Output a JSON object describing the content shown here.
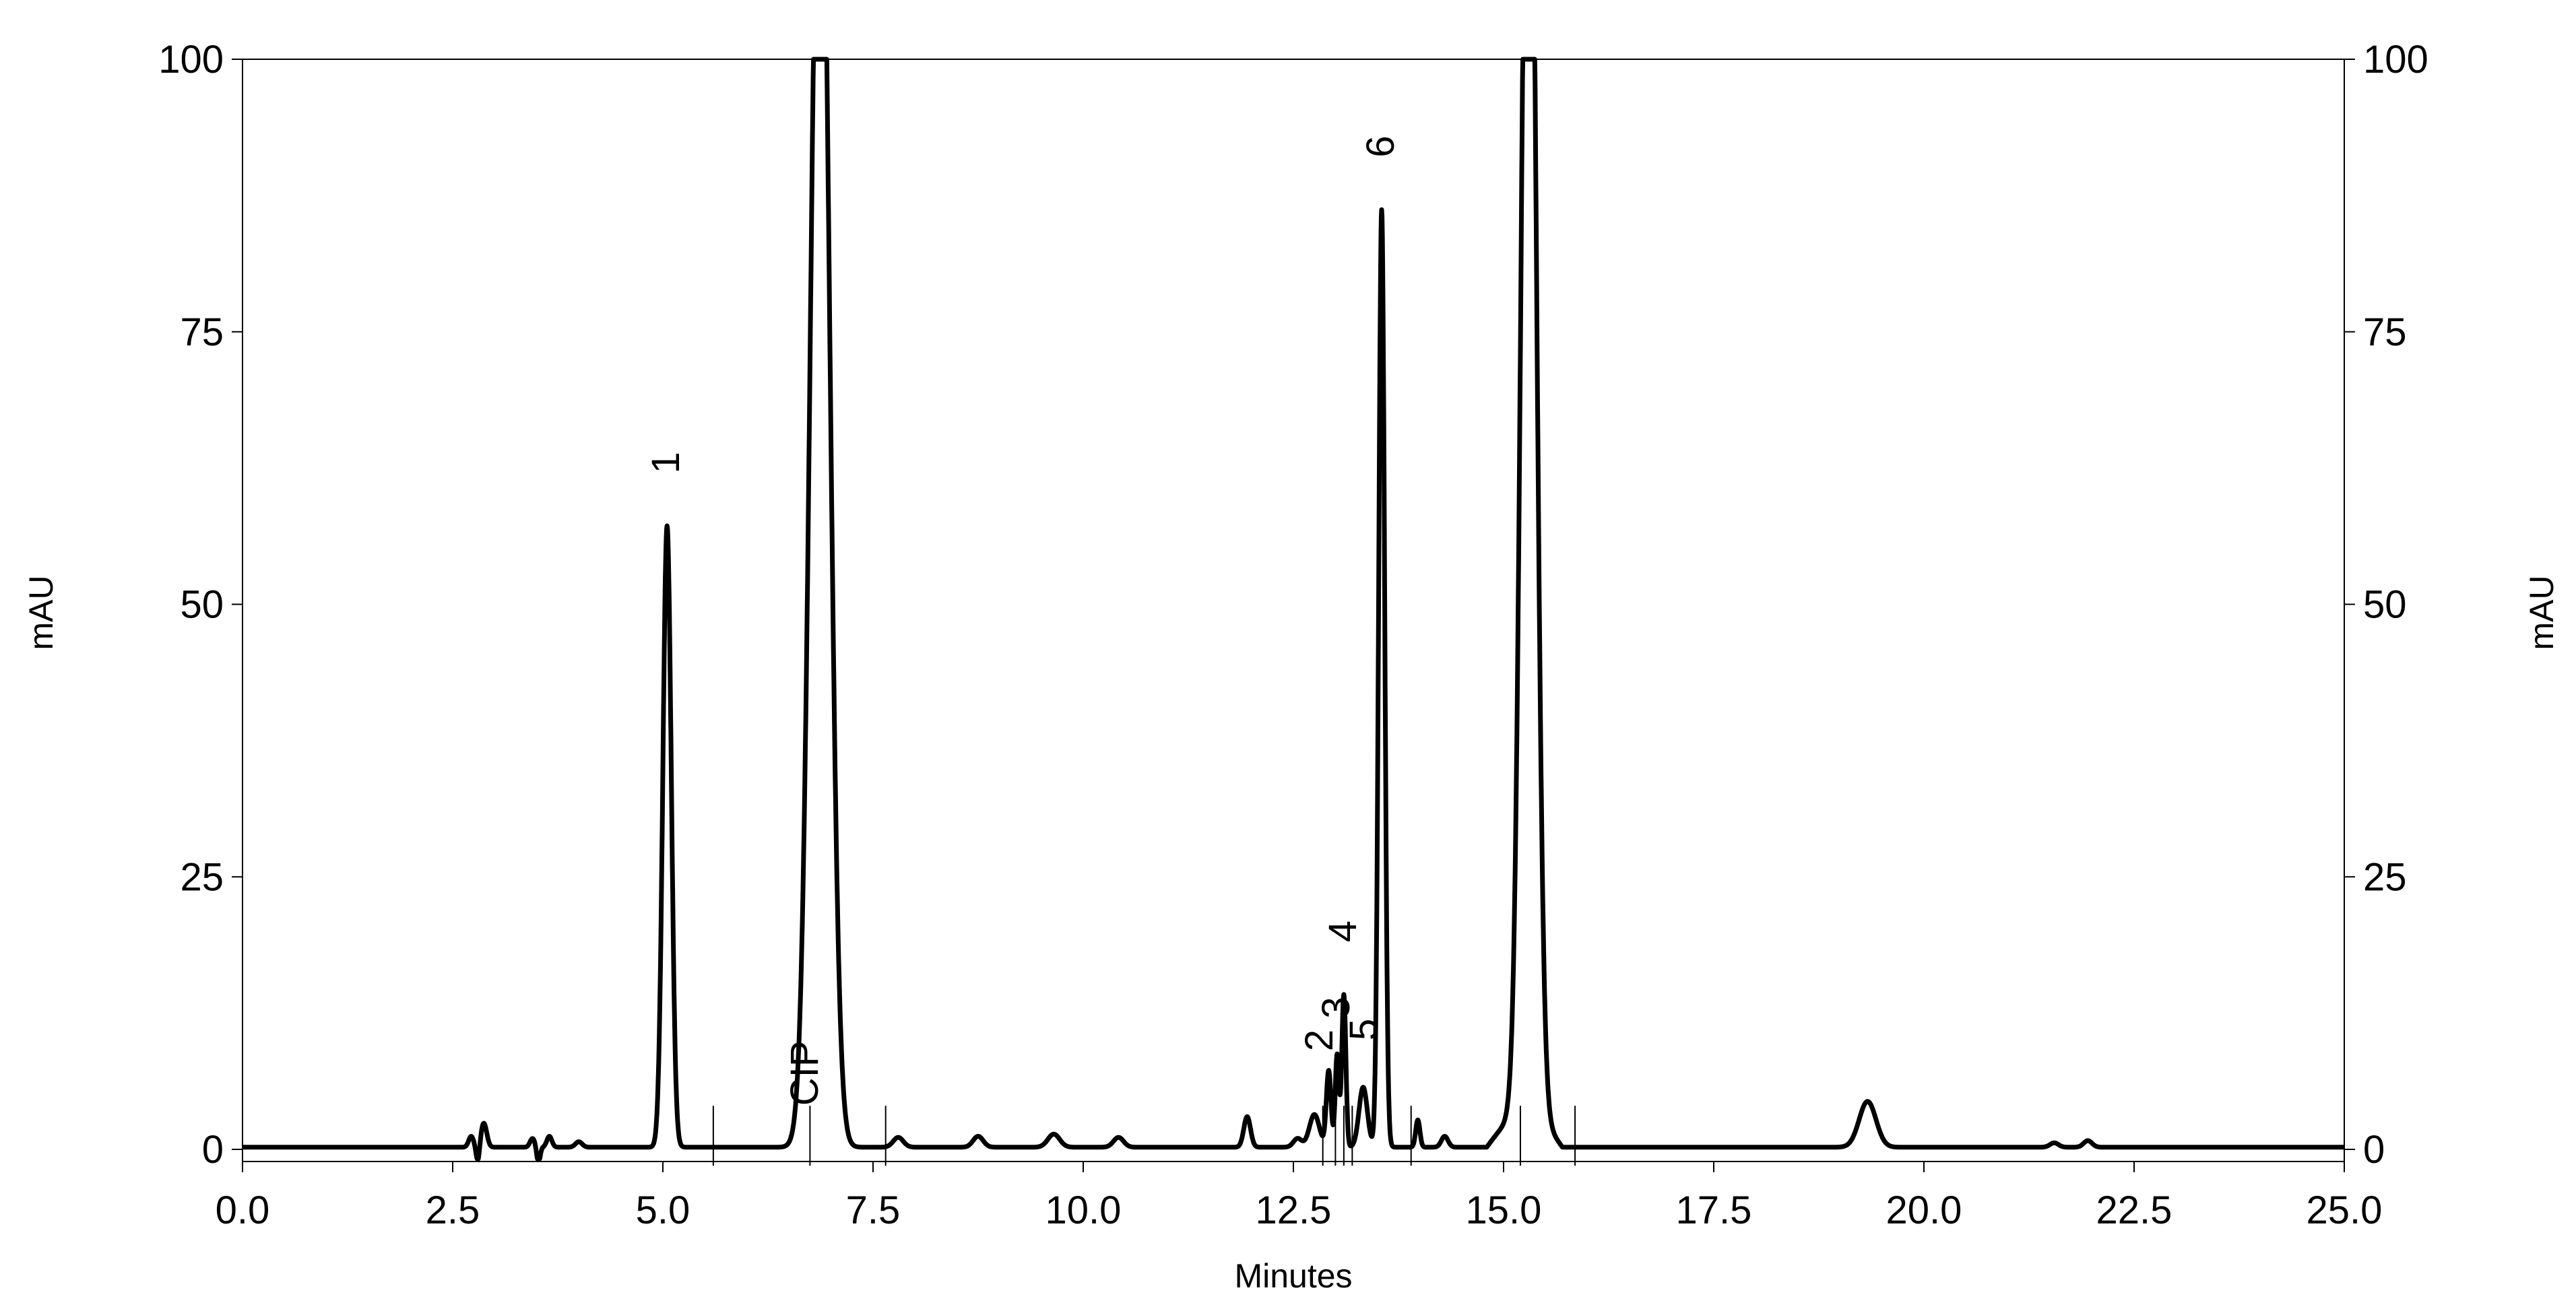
{
  "chart_data": {
    "type": "line",
    "xlabel": "Minutes",
    "ylabel_left": "mAU",
    "ylabel_right": "mAU",
    "xlim": [
      0,
      25
    ],
    "ylim": [
      0,
      100
    ],
    "x_ticks": [
      0,
      2.5,
      5,
      7.5,
      10,
      12.5,
      15,
      17.5,
      20,
      22.5,
      25
    ],
    "x_tick_labels": [
      "0.0",
      "2.5",
      "5.0",
      "7.5",
      "10.0",
      "12.5",
      "15.0",
      "17.5",
      "20.0",
      "22.5",
      "25.0"
    ],
    "y_ticks": [
      0,
      25,
      50,
      75,
      100
    ],
    "y_tick_labels": [
      "0",
      "25",
      "50",
      "75",
      "100"
    ],
    "grid": false,
    "baseline": 0.2,
    "series": [
      {
        "peaks": [
          {
            "rt": 2.72,
            "height": 1.0,
            "width": 0.03
          },
          {
            "rt": 2.87,
            "height": 2.2,
            "width": 0.035
          },
          {
            "rt": 2.8,
            "height": -1.5,
            "width": 0.02
          },
          {
            "rt": 3.45,
            "height": 0.8,
            "width": 0.03
          },
          {
            "rt": 3.52,
            "height": -1.5,
            "width": 0.02
          },
          {
            "rt": 3.65,
            "height": 1.0,
            "width": 0.03
          },
          {
            "rt": 4.0,
            "height": 0.5,
            "width": 0.04
          },
          {
            "rt": 5.05,
            "height": 57.0,
            "width": 0.05
          },
          {
            "rt": 6.87,
            "height": 130.0,
            "width": 0.11
          },
          {
            "rt": 7.8,
            "height": 0.9,
            "width": 0.06
          },
          {
            "rt": 8.75,
            "height": 1.0,
            "width": 0.06
          },
          {
            "rt": 9.65,
            "height": 1.2,
            "width": 0.07
          },
          {
            "rt": 10.42,
            "height": 0.9,
            "width": 0.06
          },
          {
            "rt": 11.95,
            "height": 2.8,
            "width": 0.04
          },
          {
            "rt": 12.55,
            "height": 0.8,
            "width": 0.05
          },
          {
            "rt": 12.75,
            "height": 3.0,
            "width": 0.06
          },
          {
            "rt": 12.92,
            "height": 7.0,
            "width": 0.028
          },
          {
            "rt": 13.02,
            "height": 8.5,
            "width": 0.022
          },
          {
            "rt": 13.1,
            "height": 14.0,
            "width": 0.024
          },
          {
            "rt": 13.33,
            "height": 5.5,
            "width": 0.05
          },
          {
            "rt": 13.55,
            "height": 86.0,
            "width": 0.035
          },
          {
            "rt": 13.98,
            "height": 2.5,
            "width": 0.025
          },
          {
            "rt": 14.3,
            "height": 1.0,
            "width": 0.04
          },
          {
            "rt": 15.3,
            "height": 140.0,
            "width": 0.085
          },
          {
            "rt": 19.33,
            "height": 4.2,
            "width": 0.1
          },
          {
            "rt": 21.55,
            "height": 0.4,
            "width": 0.05
          },
          {
            "rt": 21.95,
            "height": 0.6,
            "width": 0.05
          }
        ],
        "drift": [
          {
            "from": 14.8,
            "to": 15.7,
            "level": 3.0
          }
        ]
      }
    ],
    "peak_labels": [
      {
        "text": "1",
        "rt": 5.05,
        "y": 62
      },
      {
        "text": "CIP",
        "rt": 6.7,
        "y": 4
      },
      {
        "text": "2",
        "rt": 12.82,
        "y": 9
      },
      {
        "text": "3",
        "rt": 13.02,
        "y": 12
      },
      {
        "text": "4",
        "rt": 13.1,
        "y": 19
      },
      {
        "text": "5",
        "rt": 13.35,
        "y": 10
      },
      {
        "text": "6",
        "rt": 13.55,
        "y": 91
      }
    ],
    "integration_marks": [
      5.6,
      6.75,
      7.65,
      12.85,
      13.0,
      13.1,
      13.2,
      13.9,
      15.2,
      15.85
    ]
  }
}
